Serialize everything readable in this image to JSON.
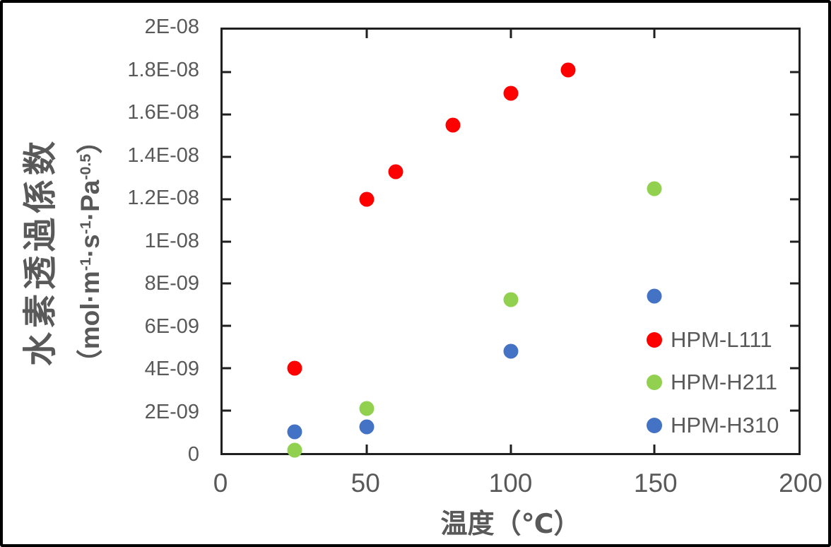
{
  "chart_data": {
    "type": "scatter",
    "title": "",
    "xlabel": "温度（℃）",
    "ylabel": "水素透過係数（mol·m-1·s-1·Pa-0.5）",
    "ylabel_main": "水素透過係数",
    "ylabel_unit_segments": [
      {
        "text": "（mol·m"
      },
      {
        "text": "-1",
        "sup": true
      },
      {
        "text": "·s"
      },
      {
        "text": "-1",
        "sup": true
      },
      {
        "text": "·Pa"
      },
      {
        "text": "-0.5",
        "sup": true
      },
      {
        "text": "）"
      }
    ],
    "xlim": [
      0,
      200
    ],
    "ylim": [
      0,
      2e-08
    ],
    "grid": false,
    "legend_position": "inside-right",
    "x_ticks": [
      {
        "value": 0,
        "label": "0"
      },
      {
        "value": 50,
        "label": "50"
      },
      {
        "value": 100,
        "label": "100"
      },
      {
        "value": 150,
        "label": "150"
      },
      {
        "value": 200,
        "label": "200"
      }
    ],
    "y_ticks": [
      {
        "value": 0,
        "label": "0"
      },
      {
        "value": 2e-09,
        "label": "2E-09"
      },
      {
        "value": 4e-09,
        "label": "4E-09"
      },
      {
        "value": 6e-09,
        "label": "6E-09"
      },
      {
        "value": 8e-09,
        "label": "8E-09"
      },
      {
        "value": 1e-08,
        "label": "1E-08"
      },
      {
        "value": 1.2e-08,
        "label": "1.2E-08"
      },
      {
        "value": 1.4e-08,
        "label": "1.4E-08"
      },
      {
        "value": 1.6e-08,
        "label": "1.6E-08"
      },
      {
        "value": 1.8e-08,
        "label": "1.8E-08"
      },
      {
        "value": 2e-08,
        "label": "2E-08"
      }
    ],
    "series": [
      {
        "name": "HPM-L111",
        "color": "#FF0000",
        "points": [
          {
            "x": 25,
            "y": 4e-09
          },
          {
            "x": 50,
            "y": 1.2e-08
          },
          {
            "x": 60,
            "y": 1.33e-08
          },
          {
            "x": 80,
            "y": 1.55e-08
          },
          {
            "x": 100,
            "y": 1.7e-08
          },
          {
            "x": 120,
            "y": 1.81e-08
          }
        ]
      },
      {
        "name": "HPM-H211",
        "color": "#92D050",
        "points": [
          {
            "x": 25,
            "y": 1.5e-10
          },
          {
            "x": 50,
            "y": 2.1e-09
          },
          {
            "x": 100,
            "y": 7.25e-09
          },
          {
            "x": 150,
            "y": 1.25e-08
          }
        ]
      },
      {
        "name": "HPM-H310",
        "color": "#4472C4",
        "points": [
          {
            "x": 25,
            "y": 1e-09
          },
          {
            "x": 50,
            "y": 1.25e-09
          },
          {
            "x": 100,
            "y": 4.8e-09
          },
          {
            "x": 150,
            "y": 7.4e-09
          }
        ]
      }
    ]
  }
}
